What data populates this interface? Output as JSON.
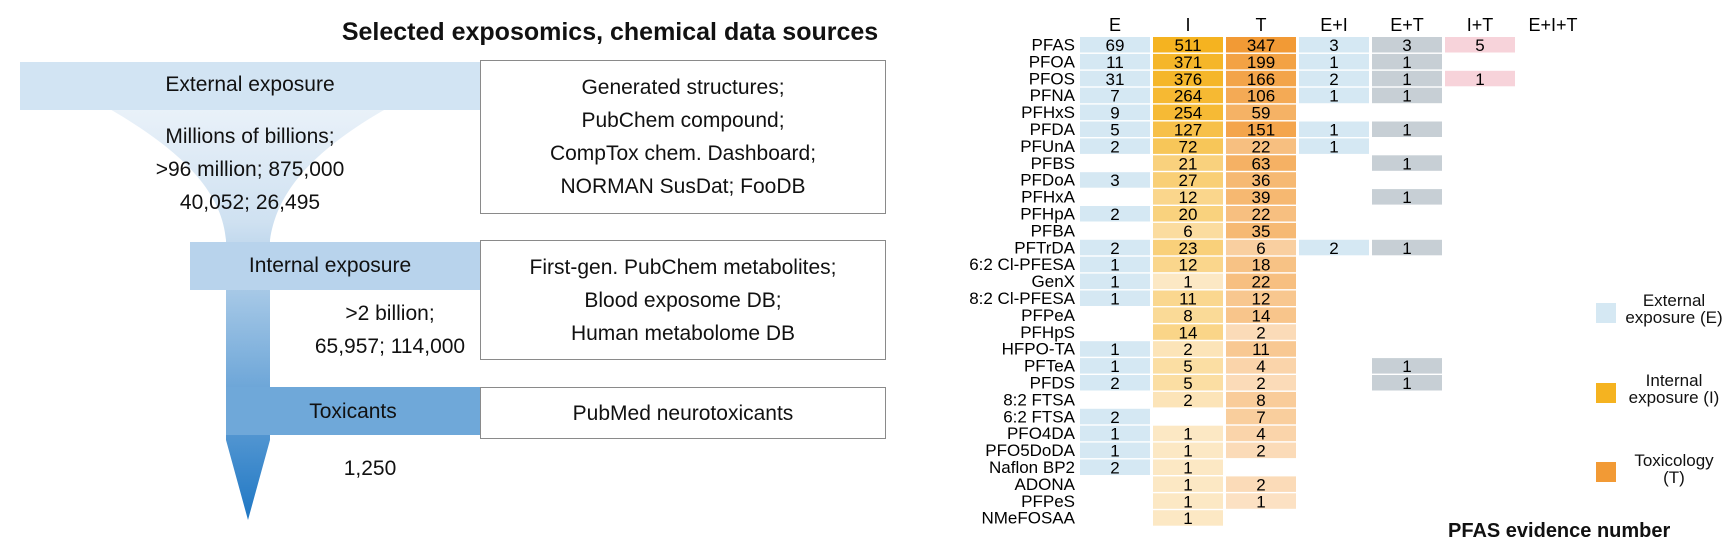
{
  "funnel": {
    "title": "Selected exposomics, chemical data sources",
    "stages": [
      {
        "label": "External exposure",
        "counts": [
          "Millions of billions;",
          ">96 million; 875,000",
          "40,052; 26,495"
        ],
        "sources": [
          "Generated structures;",
          "PubChem compound;",
          "CompTox chem. Dashboard;",
          "NORMAN SusDat; FooDB"
        ]
      },
      {
        "label": "Internal exposure",
        "counts": [
          ">2 billion;",
          "65,957; 114,000"
        ],
        "sources": [
          "First-gen. PubChem metabolites;",
          "Blood exposome DB;",
          "Human metabolome DB"
        ]
      },
      {
        "label": "Toxicants",
        "counts": [
          "1,250"
        ],
        "sources": [
          "PubMed neurotoxicants"
        ]
      }
    ],
    "colors": {
      "stage_band": "#a9cbe8",
      "funnel_top": "#e3eef8",
      "funnel_bottom": "#1f77c4"
    }
  },
  "chart_data": {
    "type": "heatmap",
    "title": "PFAS evidence number",
    "columns": [
      "E",
      "I",
      "T",
      "E+I",
      "E+T",
      "I+T",
      "E+I+T"
    ],
    "rows": [
      "PFAS",
      "PFOA",
      "PFOS",
      "PFNA",
      "PFHxS",
      "PFDA",
      "PFUnA",
      "PFBS",
      "PFDoA",
      "PFHxA",
      "PFHpA",
      "PFBA",
      "PFTrDA",
      "6:2 Cl-PFESA",
      "GenX",
      "8:2 Cl-PFESA",
      "PFPeA",
      "PFHpS",
      "HFPO-TA",
      "PFTeA",
      "PFDS",
      "8:2 FTSA",
      "6:2 FTSA",
      "PFO4DA",
      "PFO5DoDA",
      "Naflon BP2",
      "ADONA",
      "PFPeS",
      "NMeFOSAA"
    ],
    "values": [
      [
        69,
        511,
        347,
        3,
        3,
        5,
        null
      ],
      [
        11,
        371,
        199,
        1,
        1,
        null,
        null
      ],
      [
        31,
        376,
        166,
        2,
        1,
        1,
        null
      ],
      [
        7,
        264,
        106,
        1,
        1,
        null,
        null
      ],
      [
        9,
        254,
        59,
        null,
        null,
        null,
        null
      ],
      [
        5,
        127,
        151,
        1,
        1,
        null,
        null
      ],
      [
        2,
        72,
        22,
        1,
        null,
        null,
        null
      ],
      [
        null,
        21,
        63,
        null,
        1,
        null,
        null
      ],
      [
        3,
        27,
        36,
        null,
        null,
        null,
        null
      ],
      [
        null,
        12,
        39,
        null,
        1,
        null,
        null
      ],
      [
        2,
        20,
        22,
        null,
        null,
        null,
        null
      ],
      [
        null,
        6,
        35,
        null,
        null,
        null,
        null
      ],
      [
        2,
        23,
        6,
        2,
        1,
        null,
        null
      ],
      [
        1,
        12,
        18,
        null,
        null,
        null,
        null
      ],
      [
        1,
        1,
        22,
        null,
        null,
        null,
        null
      ],
      [
        1,
        11,
        12,
        null,
        null,
        null,
        null
      ],
      [
        null,
        8,
        14,
        null,
        null,
        null,
        null
      ],
      [
        null,
        14,
        2,
        null,
        null,
        null,
        null
      ],
      [
        1,
        2,
        11,
        null,
        null,
        null,
        null
      ],
      [
        1,
        5,
        4,
        null,
        1,
        null,
        null
      ],
      [
        2,
        5,
        2,
        null,
        1,
        null,
        null
      ],
      [
        null,
        2,
        8,
        null,
        null,
        null,
        null
      ],
      [
        2,
        null,
        7,
        null,
        null,
        null,
        null
      ],
      [
        1,
        1,
        4,
        null,
        null,
        null,
        null
      ],
      [
        1,
        1,
        2,
        null,
        null,
        null,
        null
      ],
      [
        2,
        1,
        null,
        null,
        null,
        null,
        null
      ],
      [
        null,
        1,
        2,
        null,
        null,
        null,
        null
      ],
      [
        null,
        1,
        1,
        null,
        null,
        null,
        null
      ],
      [
        null,
        1,
        null,
        null,
        null,
        null,
        null
      ]
    ],
    "legend": [
      {
        "label": "External exposure (E)",
        "color": "#d5e8f3"
      },
      {
        "label": "Internal exposure (I)",
        "color": "#f5b320"
      },
      {
        "label": "Toxicology (T)",
        "color": "#f29a35"
      }
    ],
    "column_colors": {
      "E": "#d5e8f3",
      "E+I": "#d5e8f3",
      "E+T": "#c7cfd5",
      "I+T": "#f7d3da"
    },
    "scale": {
      "I_low": "#fdefd8",
      "I_high": "#f5b320",
      "T_low": "#fdead6",
      "T_high": "#f29a35"
    }
  }
}
